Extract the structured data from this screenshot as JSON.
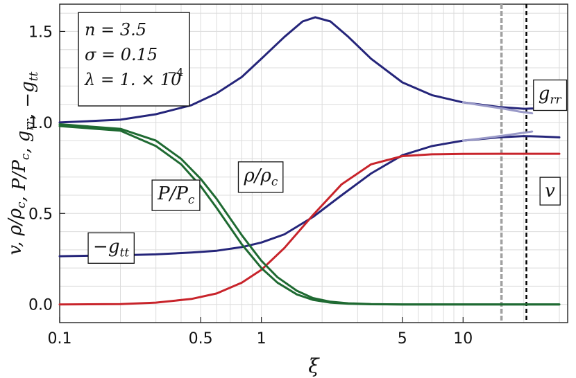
{
  "chart_data": {
    "type": "line",
    "xlabel": "ξ",
    "ylabel_parts": [
      "v",
      "ρ/ρc",
      "P/Pc",
      "grr",
      "−gtt"
    ],
    "x_scale": "log",
    "xlim": [
      0.1,
      33
    ],
    "ylim": [
      -0.1,
      1.65
    ],
    "x_ticks": [
      {
        "value": 0.1,
        "label": "0.1"
      },
      {
        "value": 0.5,
        "label": "0.5"
      },
      {
        "value": 1,
        "label": "1"
      },
      {
        "value": 5,
        "label": "5"
      },
      {
        "value": 10,
        "label": "10"
      }
    ],
    "y_ticks": [
      {
        "value": 0.0,
        "label": "0.0"
      },
      {
        "value": 0.5,
        "label": "0.5"
      },
      {
        "value": 1.0,
        "label": "1.0"
      },
      {
        "value": 1.5,
        "label": "1.5"
      }
    ],
    "grid": true,
    "parameters": {
      "n_line": "n = 3.5",
      "sigma_line": "σ = 0.15",
      "lambda_line": "λ = 1. × 10",
      "lambda_exp": "−4"
    },
    "vertical_lines": [
      {
        "x": 15.5,
        "style": "dashed",
        "color": "#a0a0a0"
      },
      {
        "x": 20.6,
        "style": "dashed",
        "color": "#000000"
      }
    ],
    "series": [
      {
        "name": "grr",
        "color": "#25257a",
        "width": 3,
        "x": [
          0.1,
          0.2,
          0.3,
          0.45,
          0.6,
          0.8,
          1.0,
          1.3,
          1.6,
          1.85,
          2.2,
          2.7,
          3.5,
          5,
          7,
          10,
          15,
          20,
          25,
          30
        ],
        "y": [
          1.0,
          1.015,
          1.045,
          1.095,
          1.16,
          1.25,
          1.35,
          1.47,
          1.555,
          1.578,
          1.555,
          1.47,
          1.35,
          1.22,
          1.15,
          1.11,
          1.085,
          1.075,
          1.078,
          1.09
        ]
      },
      {
        "name": "grr-approx",
        "color": "#9a9ac8",
        "width": 3,
        "x": [
          10,
          13,
          16,
          19,
          22
        ],
        "y": [
          1.11,
          1.09,
          1.075,
          1.06,
          1.05
        ]
      },
      {
        "name": "−gtt",
        "color": "#25257a",
        "width": 3,
        "x": [
          0.1,
          0.2,
          0.3,
          0.45,
          0.6,
          0.8,
          1.0,
          1.3,
          1.8,
          2.5,
          3.5,
          5,
          7,
          10,
          15,
          20,
          25,
          30
        ],
        "y": [
          0.265,
          0.27,
          0.275,
          0.285,
          0.295,
          0.315,
          0.34,
          0.385,
          0.48,
          0.6,
          0.72,
          0.82,
          0.87,
          0.9,
          0.918,
          0.925,
          0.922,
          0.918
        ]
      },
      {
        "name": "gtt-approx",
        "color": "#9a9ac8",
        "width": 3,
        "x": [
          10,
          13,
          16,
          19,
          22
        ],
        "y": [
          0.9,
          0.915,
          0.928,
          0.94,
          0.95
        ]
      },
      {
        "name": "v",
        "color": "#c8242b",
        "width": 3,
        "x": [
          0.1,
          0.2,
          0.3,
          0.45,
          0.6,
          0.8,
          1.0,
          1.3,
          1.8,
          2.5,
          3.5,
          5,
          7,
          10,
          15,
          20,
          30
        ],
        "y": [
          0.0,
          0.002,
          0.01,
          0.03,
          0.06,
          0.12,
          0.19,
          0.31,
          0.49,
          0.66,
          0.77,
          0.815,
          0.825,
          0.827,
          0.828,
          0.828,
          0.828
        ]
      },
      {
        "name": "P/Pc",
        "color": "#1f6a32",
        "width": 3,
        "x": [
          0.1,
          0.2,
          0.3,
          0.4,
          0.5,
          0.6,
          0.8,
          1.0,
          1.2,
          1.5,
          1.8,
          2.2,
          2.7,
          3.5,
          5,
          10,
          30
        ],
        "y": [
          0.98,
          0.955,
          0.87,
          0.77,
          0.65,
          0.53,
          0.33,
          0.2,
          0.12,
          0.055,
          0.025,
          0.01,
          0.004,
          0.001,
          0,
          0,
          0
        ]
      },
      {
        "name": "ρ/ρc",
        "color": "#1f6a32",
        "width": 3,
        "x": [
          0.1,
          0.2,
          0.3,
          0.4,
          0.5,
          0.6,
          0.8,
          1.0,
          1.2,
          1.5,
          1.8,
          2.2,
          2.7,
          3.5,
          5,
          10,
          30
        ],
        "y": [
          0.99,
          0.965,
          0.9,
          0.8,
          0.69,
          0.58,
          0.38,
          0.24,
          0.15,
          0.075,
          0.035,
          0.015,
          0.006,
          0.002,
          0,
          0,
          0
        ]
      }
    ],
    "labels": [
      {
        "text": "grr",
        "x": 27,
        "y": 1.17
      },
      {
        "text": "v",
        "x": 27,
        "y": 0.63
      },
      {
        "text": "P/Pc",
        "x": 0.38,
        "y": 0.62
      },
      {
        "text": "ρ/ρc",
        "x": 1.0,
        "y": 0.72
      },
      {
        "text": "−gtt",
        "x": 0.18,
        "y": 0.33
      }
    ]
  }
}
